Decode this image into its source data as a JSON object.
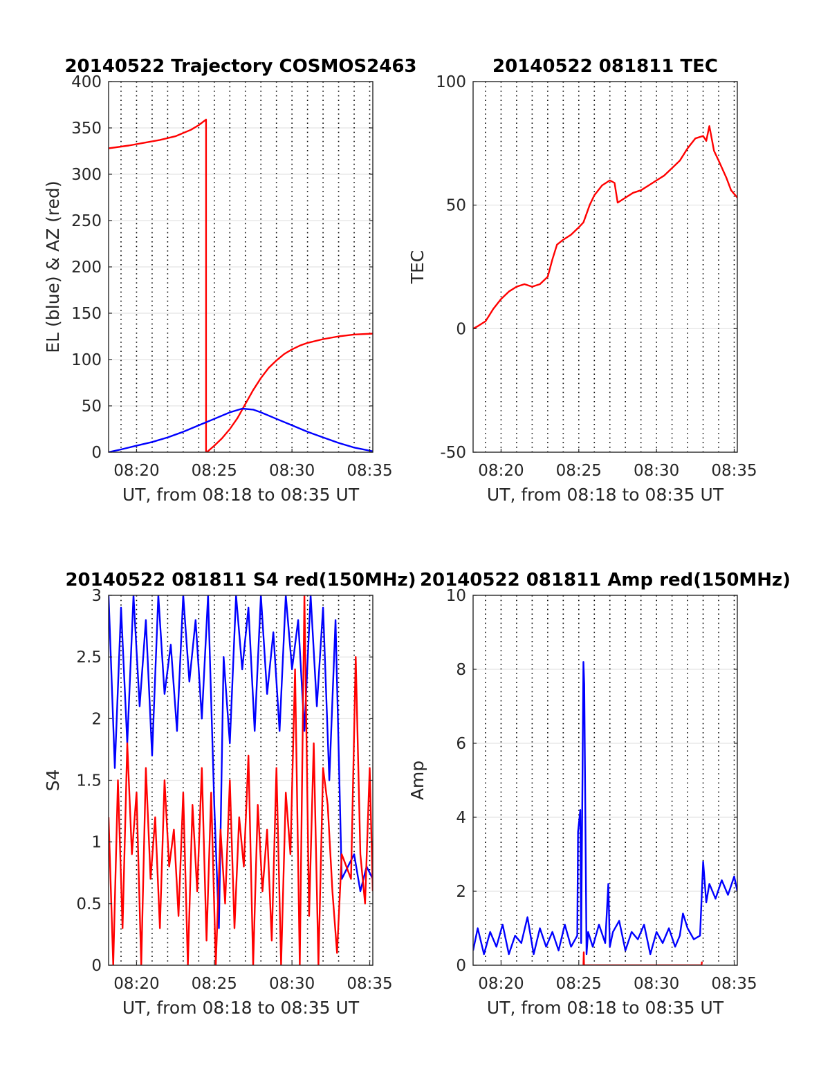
{
  "chart_data": [
    {
      "id": "trajectory",
      "type": "line",
      "title": "20140522 Trajectory COSMOS2463",
      "xlabel": "UT, from 08:18 to 08:35 UT",
      "ylabel": "EL (blue) & AZ (red)",
      "xlim": [
        18.2,
        35.2
      ],
      "ylim": [
        0,
        400
      ],
      "xticks": [
        20,
        25,
        30,
        35
      ],
      "xtick_labels": [
        "08:20",
        "08:25",
        "08:30",
        "08:35"
      ],
      "yticks": [
        0,
        50,
        100,
        150,
        200,
        250,
        300,
        350,
        400
      ],
      "ytick_labels": [
        "0",
        "50",
        "100",
        "150",
        "200",
        "250",
        "300",
        "350",
        "400"
      ],
      "grid": true,
      "series": [
        {
          "color": "#ff0000",
          "x": [
            18.2,
            19.5,
            20.5,
            21.5,
            22.5,
            23.5,
            24.0,
            24.47,
            24.47,
            24.52,
            25.0,
            25.5,
            26.0,
            26.5,
            27.0,
            27.5,
            28.0,
            28.5,
            29.0,
            29.5,
            30.0,
            30.5,
            31.0,
            32.0,
            33.0,
            34.0,
            35.2
          ],
          "y": [
            328,
            331,
            334,
            337,
            341,
            348,
            353,
            359,
            0,
            0,
            7,
            15,
            25,
            37,
            52,
            67,
            80,
            91,
            99,
            106,
            111,
            115,
            118,
            122,
            125,
            127,
            128
          ]
        },
        {
          "color": "#0000ff",
          "x": [
            18.2,
            19.0,
            20.0,
            21.0,
            22.0,
            23.0,
            24.0,
            25.0,
            26.0,
            26.8,
            27.5,
            28.0,
            29.0,
            30.0,
            31.0,
            32.0,
            33.0,
            34.0,
            35.2
          ],
          "y": [
            0,
            3,
            7,
            11,
            16,
            22,
            29,
            36,
            43,
            47,
            46,
            43,
            36,
            29,
            22,
            16,
            10,
            5,
            1
          ]
        }
      ]
    },
    {
      "id": "tec",
      "type": "line",
      "title": "20140522 081811 TEC",
      "xlabel": "UT, from 08:18 to 08:35 UT",
      "ylabel": "TEC",
      "xlim": [
        18.2,
        35.2
      ],
      "ylim": [
        -50,
        100
      ],
      "xticks": [
        20,
        25,
        30,
        35
      ],
      "xtick_labels": [
        "08:20",
        "08:25",
        "08:30",
        "08:35"
      ],
      "yticks": [
        -50,
        0,
        50,
        100
      ],
      "ytick_labels": [
        "-50",
        "0",
        "50",
        "100"
      ],
      "grid": true,
      "series": [
        {
          "color": "#ff0000",
          "x": [
            18.2,
            18.5,
            19.0,
            19.5,
            20.0,
            20.5,
            21.0,
            21.5,
            22.0,
            22.5,
            23.0,
            23.3,
            23.6,
            24.0,
            24.5,
            25.0,
            25.3,
            25.7,
            26.0,
            26.5,
            27.0,
            27.3,
            27.5,
            28.0,
            28.5,
            29.0,
            29.5,
            30.0,
            30.5,
            31.0,
            31.5,
            32.0,
            32.5,
            33.0,
            33.2,
            33.4,
            33.7,
            34.0,
            34.5,
            34.8,
            35.2
          ],
          "y": [
            0,
            1,
            3,
            8,
            12,
            15,
            17,
            18,
            17,
            18,
            21,
            28,
            34,
            36,
            38,
            41,
            43,
            50,
            54,
            58,
            60,
            59,
            51,
            53,
            55,
            56,
            58,
            60,
            62,
            65,
            68,
            73,
            77,
            78,
            76,
            82,
            72,
            68,
            61,
            56,
            53
          ]
        }
      ]
    },
    {
      "id": "s4",
      "type": "line",
      "title": "20140522 081811 S4 red(150MHz)",
      "xlabel": "UT, from 08:18 to 08:35 UT",
      "ylabel": "S4",
      "xlim": [
        18.2,
        35.2
      ],
      "ylim": [
        0,
        3
      ],
      "xticks": [
        20,
        25,
        30,
        35
      ],
      "xtick_labels": [
        "08:20",
        "08:25",
        "08:30",
        "08:35"
      ],
      "yticks": [
        0,
        0.5,
        1,
        1.5,
        2,
        2.5,
        3
      ],
      "ytick_labels": [
        "0",
        "0.5",
        "1",
        "1.5",
        "2",
        "2.5",
        "3"
      ],
      "grid": true,
      "series": [
        {
          "color": "#0000ff",
          "x": [
            18.2,
            18.6,
            19.0,
            19.4,
            19.8,
            20.2,
            20.6,
            21.0,
            21.4,
            21.8,
            22.2,
            22.6,
            23.0,
            23.4,
            23.8,
            24.2,
            24.6,
            25.0,
            25.3,
            25.6,
            26.0,
            26.4,
            26.8,
            27.2,
            27.6,
            28.0,
            28.4,
            28.8,
            29.2,
            29.6,
            30.0,
            30.4,
            30.8,
            31.2,
            31.6,
            32.0,
            32.4,
            32.8,
            33.2,
            33.6,
            34.0,
            34.4,
            34.8,
            35.2
          ],
          "y": [
            3.0,
            1.6,
            2.9,
            1.8,
            3.0,
            2.1,
            2.8,
            1.7,
            3.0,
            2.2,
            2.6,
            1.9,
            3.0,
            2.3,
            2.8,
            2.0,
            3.0,
            1.3,
            0.3,
            2.5,
            1.8,
            3.0,
            2.4,
            2.9,
            1.9,
            3.0,
            2.2,
            2.7,
            1.9,
            3.0,
            2.4,
            2.8,
            1.9,
            3.0,
            2.1,
            2.9,
            1.5,
            2.8,
            0.7,
            0.8,
            0.9,
            0.6,
            0.8,
            0.7
          ]
        },
        {
          "color": "#ff0000",
          "x": [
            18.2,
            18.5,
            18.8,
            19.1,
            19.4,
            19.7,
            20.0,
            20.3,
            20.6,
            20.9,
            21.2,
            21.5,
            21.8,
            22.1,
            22.4,
            22.7,
            23.0,
            23.3,
            23.6,
            23.9,
            24.2,
            24.5,
            24.8,
            25.1,
            25.4,
            25.7,
            26.0,
            26.3,
            26.6,
            26.9,
            27.2,
            27.5,
            27.8,
            28.1,
            28.4,
            28.7,
            29.0,
            29.3,
            29.6,
            29.9,
            30.2,
            30.5,
            30.8,
            31.1,
            31.4,
            31.7,
            32.0,
            32.3,
            32.6,
            32.9,
            33.2,
            33.5,
            33.8,
            34.1,
            34.4,
            34.7,
            35.0,
            35.2
          ],
          "y": [
            1.2,
            0.0,
            1.5,
            0.3,
            1.8,
            0.9,
            1.4,
            0.0,
            1.6,
            0.7,
            1.2,
            0.3,
            1.5,
            0.8,
            1.1,
            0.4,
            1.4,
            0.0,
            1.3,
            0.6,
            1.6,
            0.2,
            1.4,
            0.0,
            1.1,
            0.5,
            1.5,
            0.3,
            1.2,
            0.8,
            1.7,
            0.0,
            1.3,
            0.6,
            1.1,
            0.2,
            1.6,
            0.0,
            1.4,
            0.9,
            2.4,
            0.0,
            3.0,
            0.4,
            1.8,
            0.0,
            1.6,
            1.3,
            0.6,
            0.1,
            0.9,
            0.8,
            0.7,
            2.5,
            0.9,
            0.5,
            1.6,
            0.6
          ]
        }
      ]
    },
    {
      "id": "amp",
      "type": "line",
      "title": "20140522 081811 Amp red(150MHz)",
      "xlabel": "UT, from 08:18 to 08:35 UT",
      "ylabel": "Amp",
      "xlim": [
        18.2,
        35.2
      ],
      "ylim": [
        0,
        10
      ],
      "xticks": [
        20,
        25,
        30,
        35
      ],
      "xtick_labels": [
        "08:20",
        "08:25",
        "08:30",
        "08:35"
      ],
      "yticks": [
        0,
        2,
        4,
        6,
        8,
        10
      ],
      "ytick_labels": [
        "0",
        "2",
        "4",
        "6",
        "8",
        "10"
      ],
      "grid": true,
      "series": [
        {
          "color": "#0000ff",
          "x": [
            18.2,
            18.5,
            18.9,
            19.3,
            19.7,
            20.1,
            20.5,
            20.9,
            21.3,
            21.7,
            22.1,
            22.5,
            22.9,
            23.3,
            23.7,
            24.1,
            24.5,
            24.9,
            24.95,
            25.1,
            25.15,
            25.3,
            25.35,
            25.5,
            25.6,
            25.9,
            26.3,
            26.7,
            26.9,
            27.0,
            27.2,
            27.6,
            28.0,
            28.4,
            28.8,
            29.2,
            29.6,
            30.0,
            30.4,
            30.8,
            31.2,
            31.5,
            31.7,
            32.0,
            32.4,
            32.8,
            33.0,
            33.2,
            33.4,
            33.8,
            34.2,
            34.6,
            35.0,
            35.2
          ],
          "y": [
            0.4,
            1.0,
            0.3,
            0.9,
            0.5,
            1.1,
            0.3,
            0.8,
            0.6,
            1.3,
            0.3,
            1.0,
            0.5,
            0.9,
            0.4,
            1.1,
            0.5,
            0.8,
            3.6,
            4.2,
            0.6,
            8.2,
            7.6,
            0.3,
            0.9,
            0.5,
            1.1,
            0.6,
            2.2,
            0.5,
            0.9,
            1.2,
            0.4,
            0.9,
            0.7,
            1.1,
            0.3,
            0.9,
            0.6,
            1.0,
            0.5,
            0.8,
            1.4,
            1.0,
            0.7,
            0.8,
            2.8,
            1.7,
            2.2,
            1.8,
            2.3,
            1.9,
            2.4,
            2.0
          ]
        },
        {
          "color": "#ff0000",
          "x": [
            25.3,
            25.32,
            25.34,
            32.9,
            32.92
          ],
          "y": [
            0,
            0.35,
            0,
            0,
            0.1
          ]
        }
      ]
    }
  ]
}
